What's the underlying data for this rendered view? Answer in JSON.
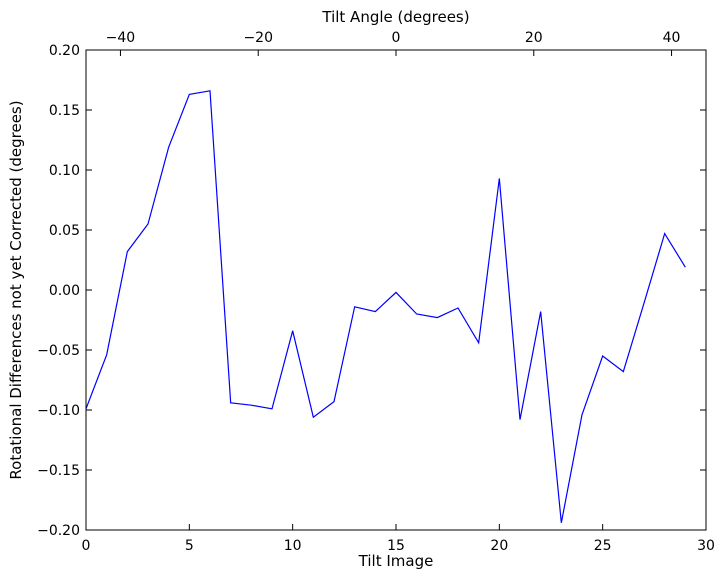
{
  "chart_data": {
    "type": "line",
    "xlabel": "Tilt Image",
    "ylabel": "Rotational Differences not yet Corrected (degrees)",
    "top_xlabel": "Tilt Angle (degrees)",
    "xlim": [
      0,
      30
    ],
    "ylim": [
      -0.2,
      0.2
    ],
    "top_xlim": [
      -45.0,
      45.0
    ],
    "x_ticks": [
      0,
      5,
      10,
      15,
      20,
      25,
      30
    ],
    "x_tick_labels": [
      "0",
      "5",
      "10",
      "15",
      "20",
      "25",
      "30"
    ],
    "y_ticks": [
      -0.2,
      -0.15,
      -0.1,
      -0.05,
      0.0,
      0.05,
      0.1,
      0.15,
      0.2
    ],
    "y_tick_labels": [
      "−0.20",
      "−0.15",
      "−0.10",
      "−0.05",
      "0.00",
      "0.05",
      "0.10",
      "0.15",
      "0.20"
    ],
    "top_x_ticks": [
      -40,
      -20,
      0,
      20,
      40
    ],
    "top_x_tick_labels": [
      "−40",
      "−20",
      "0",
      "20",
      "40"
    ],
    "grid": false,
    "line_color": "#0000ff",
    "series": [
      {
        "x": [
          0,
          1,
          2,
          3,
          4,
          5,
          6,
          7,
          8,
          9,
          10,
          11,
          12,
          13,
          14,
          15,
          16,
          17,
          18,
          19,
          20,
          21,
          22,
          23,
          24,
          25,
          26,
          27,
          28,
          29
        ],
        "values": [
          -0.099,
          -0.054,
          0.032,
          0.055,
          0.119,
          0.163,
          0.166,
          -0.094,
          -0.096,
          -0.099,
          -0.034,
          -0.106,
          -0.093,
          -0.014,
          -0.018,
          -0.002,
          -0.02,
          -0.023,
          -0.015,
          -0.044,
          0.093,
          -0.108,
          -0.018,
          -0.194,
          -0.104,
          -0.055,
          -0.068,
          -0.011,
          0.047,
          0.019
        ]
      }
    ]
  }
}
